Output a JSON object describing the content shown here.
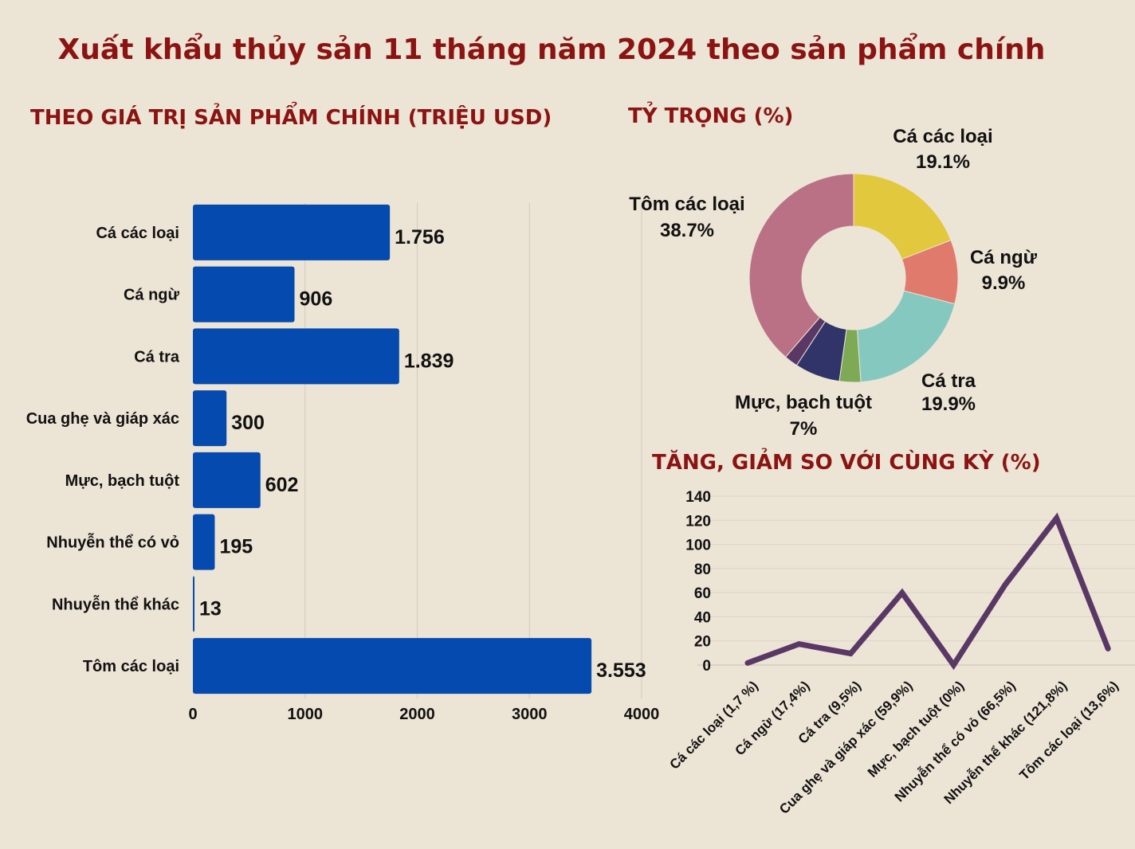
{
  "title": "Xuất khẩu thủy sản 11 tháng năm 2024 theo sản phẩm chính",
  "colors": {
    "title": "#8b1412",
    "bar": "#054aaf",
    "line": "#5a3866",
    "background": "#ece4d5"
  },
  "chart_data": [
    {
      "type": "bar",
      "orientation": "horizontal",
      "title": "THEO GIÁ TRỊ SẢN PHẨM CHÍNH (TRIỆU USD)",
      "categories": [
        "Cá các loại",
        "Cá ngừ",
        "Cá tra",
        "Cua ghẹ và giáp xác",
        "Mực, bạch tuột",
        "Nhuyễn thể có vỏ",
        "Nhuyễn thể khác",
        "Tôm các loại"
      ],
      "values": [
        1756,
        906,
        1839,
        300,
        602,
        195,
        13,
        3553
      ],
      "data_labels": [
        "1.756",
        "906",
        "1.839",
        "300",
        "602",
        "195",
        "13",
        "3.553"
      ],
      "xlim": [
        0,
        4000
      ],
      "xticks": [
        "0",
        "1000",
        "2000",
        "3000",
        "4000"
      ],
      "grid": true
    },
    {
      "type": "pie",
      "donut": true,
      "title": "TỶ TRỌNG (%)",
      "slices": [
        {
          "label": "Cá các loại",
          "value": 19.1,
          "text": "19.1%",
          "color": "#e1c83c"
        },
        {
          "label": "Cá ngừ",
          "value": 9.9,
          "text": "9.9%",
          "color": "#e07a6c"
        },
        {
          "label": "Cá tra",
          "value": 19.9,
          "text": "19.9%",
          "color": "#84c8c0"
        },
        {
          "label": "",
          "value": 3.3,
          "text": "",
          "color": "#7ea955"
        },
        {
          "label": "Mực, bạch tuột",
          "value": 7,
          "text": "7%",
          "color": "#313468"
        },
        {
          "label": "",
          "value": 2.1,
          "text": "",
          "color": "#5a3866"
        },
        {
          "label": "Tôm các loại",
          "value": 38.7,
          "text": "38.7%",
          "color": "#ba7186"
        }
      ]
    },
    {
      "type": "line",
      "title": "TĂNG, GIẢM SO VỚI CÙNG KỲ (%)",
      "categories": [
        "Cá các loại (1,7 %)",
        "Cá ngừ (17,4%)",
        "Cá tra (9,5%)",
        "Cua ghẹ và giáp xác (59,9%)",
        "Mực, bạch tuột (0%)",
        "Nhuyễn thể có vỏ (66,5%)",
        "Nhuyễn thể khác (121,8%)",
        "Tôm các loại (13,6%)"
      ],
      "values": [
        1.7,
        17.4,
        9.5,
        59.9,
        0,
        66.5,
        121.8,
        13.6
      ],
      "ylim": [
        0,
        140
      ],
      "yticks": [
        "0",
        "20",
        "40",
        "60",
        "80",
        "100",
        "120",
        "140"
      ],
      "grid": true
    }
  ]
}
